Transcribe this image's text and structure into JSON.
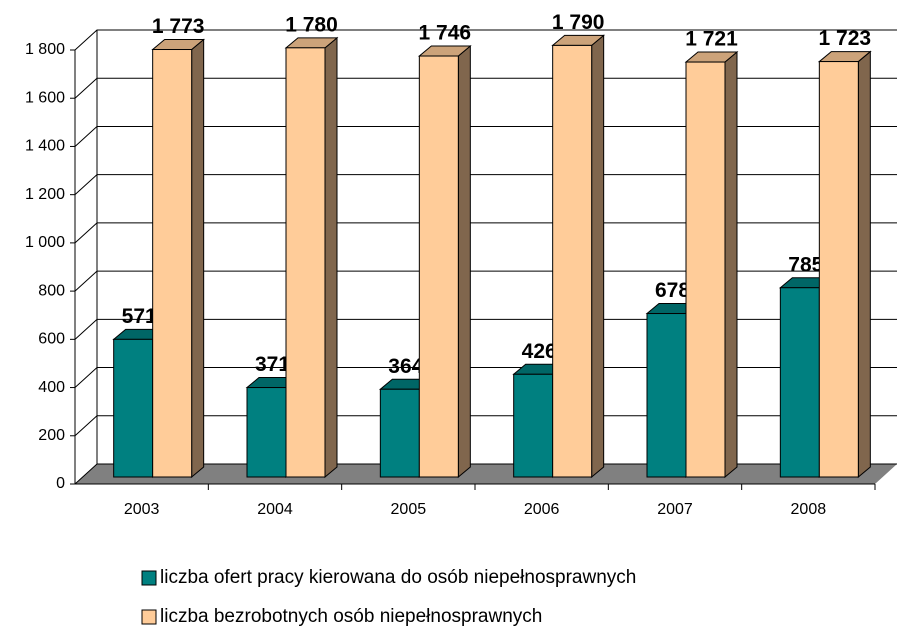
{
  "chart_data": {
    "type": "bar3d",
    "categories": [
      "2003",
      "2004",
      "2005",
      "2006",
      "2007",
      "2008"
    ],
    "series": [
      {
        "name": "liczba ofert pracy kierowana do osób niepełnosprawnych",
        "color": "#008080",
        "values": [
          571,
          371,
          364,
          426,
          678,
          785
        ]
      },
      {
        "name": "liczba bezrobotnych osób niepełnosprawnych",
        "color": "#FFCC99",
        "values": [
          1773,
          1780,
          1746,
          1790,
          1721,
          1723
        ],
        "value_labels": [
          "1 773",
          "1 780",
          "1 746",
          "1 790",
          "1 721",
          "1 723"
        ]
      }
    ],
    "ylim": [
      0,
      1800
    ],
    "yticks": [
      0,
      200,
      400,
      600,
      800,
      {
        "value": 1000,
        "label": "1 000"
      },
      {
        "value": 1200,
        "label": "1 200"
      },
      {
        "value": 1400,
        "label": "1 400"
      },
      {
        "value": 1600,
        "label": "1 600"
      },
      {
        "value": 1800,
        "label": "1 800"
      }
    ],
    "grid": true
  }
}
